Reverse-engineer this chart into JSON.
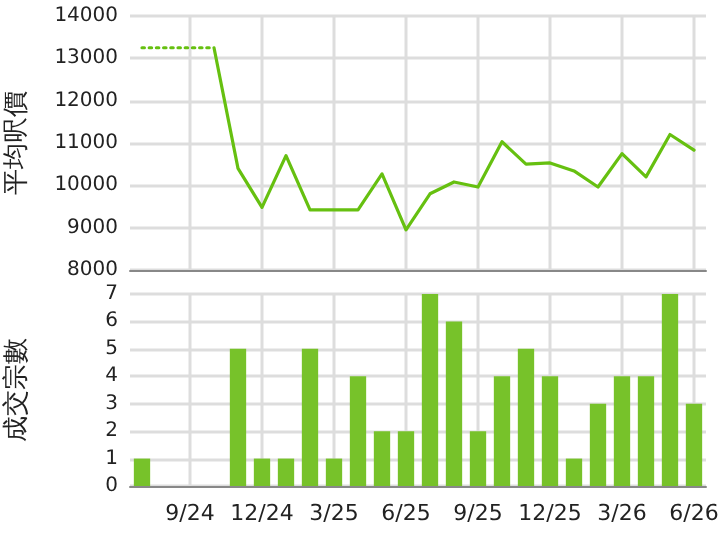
{
  "chart_data": [
    {
      "type": "line",
      "ylabel": "平均呎價",
      "categories": [
        null,
        null,
        null,
        null,
        null,
        null,
        null,
        null,
        null,
        null,
        null,
        null,
        null,
        null,
        null,
        null,
        null,
        null,
        null,
        null,
        null,
        null,
        null,
        null
      ],
      "series": [
        {
          "color": "#66c010",
          "line_style": "dotted",
          "values": [
            13250,
            13250,
            13250,
            13250,
            null,
            null,
            null,
            null,
            null,
            null,
            null,
            null,
            null,
            null,
            null,
            null,
            null,
            null,
            null,
            null,
            null,
            null,
            null,
            null
          ]
        },
        {
          "color": "#66c010",
          "line_style": "solid",
          "values": [
            null,
            null,
            null,
            13250,
            10400,
            9480,
            10700,
            9420,
            9420,
            9420,
            10270,
            8950,
            9800,
            10080,
            9960,
            11030,
            10500,
            10530,
            10340,
            9960,
            10750,
            10200,
            11200,
            10830
          ]
        }
      ],
      "ylim": [
        8000,
        14000
      ],
      "yticks": [
        8000,
        9000,
        10000,
        11000,
        12000,
        13000,
        14000
      ],
      "grid": true,
      "marker": "none",
      "tick_labels": "y"
    },
    {
      "type": "bar",
      "ylabel": "成交宗數",
      "categories": [
        null,
        null,
        "9/24",
        null,
        null,
        "12/24",
        null,
        null,
        "3/25",
        null,
        null,
        "6/25",
        null,
        null,
        "9/25",
        null,
        null,
        "12/25",
        null,
        null,
        "3/26",
        null,
        null,
        "6/26"
      ],
      "values": [
        1,
        0,
        0,
        0,
        5,
        1,
        1,
        5,
        1,
        4,
        2,
        2,
        7,
        6,
        2,
        4,
        5,
        4,
        1,
        3,
        4,
        4,
        7,
        3
      ],
      "color": "#77c22a",
      "ylim": [
        0,
        7
      ],
      "yticks": [
        0,
        1,
        2,
        3,
        4,
        5,
        6,
        7
      ],
      "grid": true
    }
  ]
}
